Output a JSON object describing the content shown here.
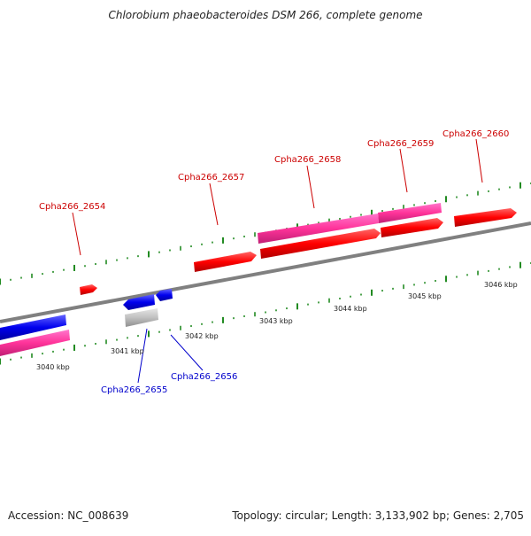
{
  "title": "Chlorobium phaeobacteroides DSM 266, complete genome",
  "footer": {
    "accession": "Accession: NC_008639",
    "summary": "Topology: circular; Length: 3,133,902 bp; Genes: 2,705"
  },
  "colors": {
    "backbone": "#808080",
    "tick": "#228b22",
    "forward_gene": "#ff0000",
    "reverse_gene": "#0000ff",
    "rna_feature": "#ff3399",
    "pseudo_feature": "#c0c0c0",
    "forward_label": "#cc0000",
    "reverse_label": "#0000cc",
    "scale_label": "#222222"
  },
  "scale_labels": [
    "3040 kbp",
    "3041 kbp",
    "3042 kbp",
    "3043 kbp",
    "3044 kbp",
    "3045 kbp",
    "3046 kbp"
  ],
  "gene_labels": [
    {
      "text": "Cpha266_2654",
      "strand": "forward"
    },
    {
      "text": "Cpha266_2655",
      "strand": "reverse"
    },
    {
      "text": "Cpha266_2656",
      "strand": "reverse"
    },
    {
      "text": "Cpha266_2657",
      "strand": "forward"
    },
    {
      "text": "Cpha266_2658",
      "strand": "forward"
    },
    {
      "text": "Cpha266_2659",
      "strand": "forward"
    },
    {
      "text": "Cpha266_2660",
      "strand": "forward"
    }
  ]
}
